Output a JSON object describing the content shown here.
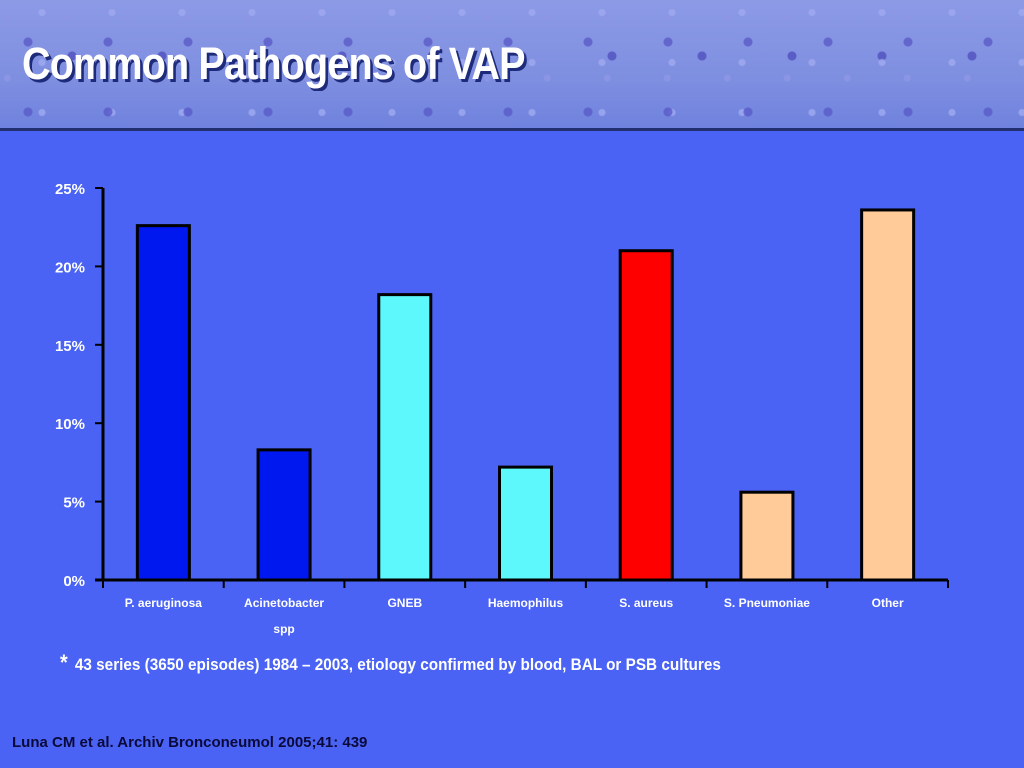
{
  "slide": {
    "title": "Common Pathogens of VAP",
    "footnote_marker": "*",
    "footnote_text": "43 series (3650 episodes) 1984 – 2003, etiology confirmed by blood, BAL or PSB cultures",
    "citation": "Luna CM et al. Archiv Bronconeumol 2005;41: 439"
  },
  "chart_data": {
    "type": "bar",
    "title": "",
    "xlabel": "",
    "ylabel": "",
    "ylim": [
      0,
      25
    ],
    "yticks": [
      0,
      5,
      10,
      15,
      20,
      25
    ],
    "ytick_labels": [
      "0%",
      "5%",
      "10%",
      "15%",
      "20%",
      "25%"
    ],
    "categories": [
      "P. aeruginosa",
      "Acinetobacter spp",
      "GNEB",
      "Haemophilus",
      "S. aureus",
      "S. Pneumoniae",
      "Other"
    ],
    "category_lines": [
      [
        "P. aeruginosa"
      ],
      [
        "Acinetobacter",
        "spp"
      ],
      [
        "GNEB"
      ],
      [
        "Haemophilus"
      ],
      [
        "S. aureus"
      ],
      [
        "S. Pneumoniae"
      ],
      [
        "Other"
      ]
    ],
    "values": [
      22.6,
      8.3,
      18.2,
      7.2,
      21.0,
      5.6,
      23.6
    ],
    "colors": [
      "#0018f0",
      "#0018f0",
      "#5cf8fc",
      "#5cf8fc",
      "#ff0000",
      "#ffcb98",
      "#ffcb98"
    ],
    "grid": false,
    "legend": "none"
  }
}
